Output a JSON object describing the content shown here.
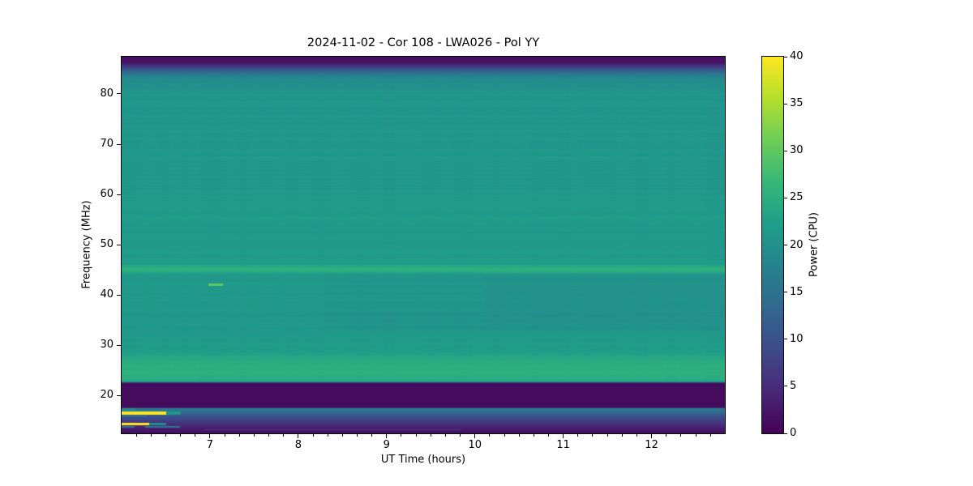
{
  "chart_data": {
    "type": "heatmap",
    "title": "2024-11-02 - Cor 108 - LWA026 - Pol YY",
    "xlabel": "UT Time (hours)",
    "ylabel": "Frequency (MHz)",
    "colorbar_label": "Power (CPU)",
    "colormap": "viridis",
    "grid": false,
    "legend_position": "right-colorbar",
    "xlim": [
      6.0,
      12.83
    ],
    "ylim": [
      12.5,
      87.4
    ],
    "clim": [
      0,
      40
    ],
    "x_major_ticks": [
      7,
      8,
      9,
      10,
      11,
      12
    ],
    "x_minor_ticks_per_hour": 6,
    "y_ticks": [
      20,
      30,
      40,
      50,
      60,
      70,
      80
    ],
    "colorbar_ticks": [
      0,
      5,
      10,
      15,
      20,
      25,
      30,
      35,
      40
    ],
    "viridis_stops": [
      "#440154",
      "#482878",
      "#3e4a89",
      "#31688e",
      "#26828e",
      "#1f9e89",
      "#35b779",
      "#6dcd59",
      "#b4de2c",
      "#fde725"
    ],
    "background_profile": [
      [
        87.4,
        1.5
      ],
      [
        86.2,
        2.5
      ],
      [
        85.0,
        10
      ],
      [
        84.0,
        16
      ],
      [
        83.0,
        19.5
      ],
      [
        80.0,
        20.8
      ],
      [
        74.0,
        21.0
      ],
      [
        70.0,
        21.3
      ],
      [
        65.0,
        21.0
      ],
      [
        60.0,
        21.4
      ],
      [
        55.0,
        21.7
      ],
      [
        50.0,
        21.4
      ],
      [
        46.3,
        21.8
      ],
      [
        45.7,
        24.8
      ],
      [
        44.6,
        24.8
      ],
      [
        44.1,
        21.3
      ],
      [
        40.0,
        21.5
      ],
      [
        36.0,
        21.0
      ],
      [
        33.0,
        21.2
      ],
      [
        29.0,
        22.2
      ],
      [
        27.5,
        24.0
      ],
      [
        26.0,
        25.3
      ],
      [
        24.0,
        25.3
      ],
      [
        23.0,
        24.3
      ],
      [
        22.7,
        22.0
      ],
      [
        22.45,
        1.2
      ],
      [
        17.55,
        1.2
      ],
      [
        17.35,
        16.8
      ],
      [
        16.9,
        15.8
      ],
      [
        16.4,
        12.5
      ],
      [
        15.8,
        10.0
      ],
      [
        15.1,
        8.0
      ],
      [
        14.4,
        6.0
      ],
      [
        13.6,
        3.5
      ],
      [
        12.9,
        2.2
      ],
      [
        12.5,
        1.5
      ]
    ],
    "banding_noise": {
      "freq_range": [
        23,
        84
      ],
      "amplitude": 0.45
    },
    "features": [
      {
        "name": "burst-dash-42mhz",
        "t0": 6.98,
        "t1": 7.14,
        "f0": 41.8,
        "f1": 42.3,
        "power": 30
      },
      {
        "name": "rfi-16.5mhz-strong",
        "t0": 6.0,
        "t1": 6.5,
        "f0": 16.2,
        "f1": 16.7,
        "power": 40
      },
      {
        "name": "rfi-16.5mhz-tail",
        "t0": 6.5,
        "t1": 6.67,
        "f0": 16.2,
        "f1": 16.7,
        "power": 21
      },
      {
        "name": "rfi-15.9mhz",
        "t0": 6.0,
        "t1": 6.28,
        "f0": 15.6,
        "f1": 16.1,
        "power": 13
      },
      {
        "name": "rfi-14.2mhz-strong",
        "t0": 6.0,
        "t1": 6.31,
        "f0": 14.05,
        "f1": 14.45,
        "power": 40
      },
      {
        "name": "rfi-14.2mhz-tail",
        "t0": 6.31,
        "t1": 6.5,
        "f0": 14.05,
        "f1": 14.45,
        "power": 19
      },
      {
        "name": "rfi-13.8mhz-early",
        "t0": 6.0,
        "t1": 6.14,
        "f0": 13.5,
        "f1": 13.95,
        "power": 15
      },
      {
        "name": "rfi-13.8mhz-later",
        "t0": 6.26,
        "t1": 6.66,
        "f0": 13.5,
        "f1": 13.95,
        "power": 16
      },
      {
        "name": "rfi-13.1mhz-faint",
        "t0": 6.92,
        "t1": 9.85,
        "f0": 13.0,
        "f1": 13.3,
        "power": 7
      },
      {
        "name": "left-edge-17mhz-bright",
        "t0": 6.0,
        "t1": 6.15,
        "f0": 17.0,
        "f1": 17.5,
        "power": 19.5
      },
      {
        "name": "midband-dim-late-a",
        "t0": 8.3,
        "t1": 10.1,
        "f0": 33.0,
        "f1": 44.1,
        "delta": -0.5
      },
      {
        "name": "midband-dim-late-b",
        "t0": 10.1,
        "t1": 12.83,
        "f0": 33.0,
        "f1": 44.1,
        "delta": -0.9
      }
    ]
  }
}
